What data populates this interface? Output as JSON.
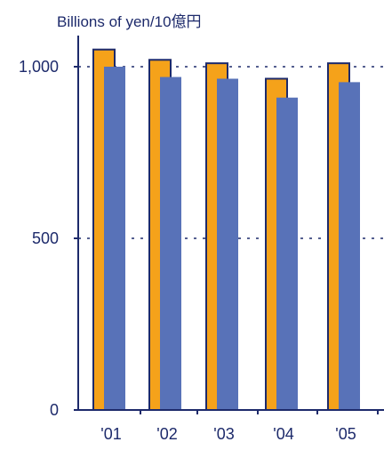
{
  "chart_data": {
    "type": "bar",
    "ylabel": "Billions of yen/10億円",
    "categories": [
      "'01",
      "'02",
      "'03",
      "'04",
      "'05"
    ],
    "series": [
      {
        "values": [
          1050,
          1020,
          1010,
          965,
          1010
        ],
        "color": "#f5a21a"
      },
      {
        "values": [
          1000,
          970,
          965,
          910,
          955
        ],
        "color": "#5872b8"
      }
    ],
    "yticks": [
      {
        "value": 0,
        "label": "0"
      },
      {
        "value": 500,
        "label": "500"
      },
      {
        "value": 1000,
        "label": "1,000"
      }
    ],
    "ylim": [
      0,
      1100
    ],
    "grid": "dotted horizontal at 500 and 1,000"
  },
  "colors": {
    "axis": "#1d2a6b",
    "bar_outline": "#1d2a6b",
    "text": "#1d2a6b"
  }
}
